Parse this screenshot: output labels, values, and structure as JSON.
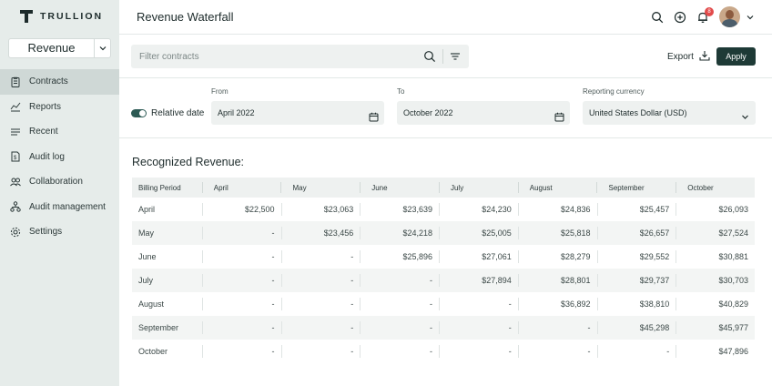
{
  "brand": {
    "name": "TRULLION"
  },
  "switcher": {
    "label": "Revenue"
  },
  "nav": [
    {
      "label": "Contracts",
      "icon": "clipboard-icon",
      "active": true
    },
    {
      "label": "Reports",
      "icon": "chart-line-icon",
      "active": false
    },
    {
      "label": "Recent",
      "icon": "list-icon",
      "active": false
    },
    {
      "label": "Audit log",
      "icon": "file-dollar-icon",
      "active": false
    },
    {
      "label": "Collaboration",
      "icon": "users-icon",
      "active": false
    },
    {
      "label": "Audit management",
      "icon": "network-icon",
      "active": false
    },
    {
      "label": "Settings",
      "icon": "gear-icon",
      "active": false
    }
  ],
  "header": {
    "title": "Revenue Waterfall",
    "notification_count": "8"
  },
  "toolbar": {
    "filter_placeholder": "Filter contracts",
    "export_label": "Export",
    "apply_label": "Apply"
  },
  "filters": {
    "relative_date_label": "Relative date",
    "from_label": "From",
    "from_value": "April 2022",
    "to_label": "To",
    "to_value": "October 2022",
    "currency_label": "Reporting currency",
    "currency_value": "United States Dollar (USD)"
  },
  "section": {
    "title": "Recognized Revenue:"
  },
  "table": {
    "headers": [
      "Billing Period",
      "April",
      "May",
      "June",
      "July",
      "August",
      "September",
      "October"
    ],
    "rows": [
      [
        "April",
        "$22,500",
        "$23,063",
        "$23,639",
        "$24,230",
        "$24,836",
        "$25,457",
        "$26,093"
      ],
      [
        "May",
        "-",
        "$23,456",
        "$24,218",
        "$25,005",
        "$25,818",
        "$26,657",
        "$27,524"
      ],
      [
        "June",
        "-",
        "-",
        "$25,896",
        "$27,061",
        "$28,279",
        "$29,552",
        "$30,881"
      ],
      [
        "July",
        "-",
        "-",
        "-",
        "$27,894",
        "$28,801",
        "$29,737",
        "$30,703"
      ],
      [
        "August",
        "-",
        "-",
        "-",
        "-",
        "$36,892",
        "$38,810",
        "$40,829"
      ],
      [
        "September",
        "-",
        "-",
        "-",
        "-",
        "-",
        "$45,298",
        "$45,977"
      ],
      [
        "October",
        "-",
        "-",
        "-",
        "-",
        "-",
        "-",
        "$47,896"
      ]
    ]
  },
  "colors": {
    "sidebar_bg": "#e6ecea",
    "active_nav": "#cfd8d6",
    "accent": "#1e3a36",
    "badge": "#e24b4b"
  }
}
